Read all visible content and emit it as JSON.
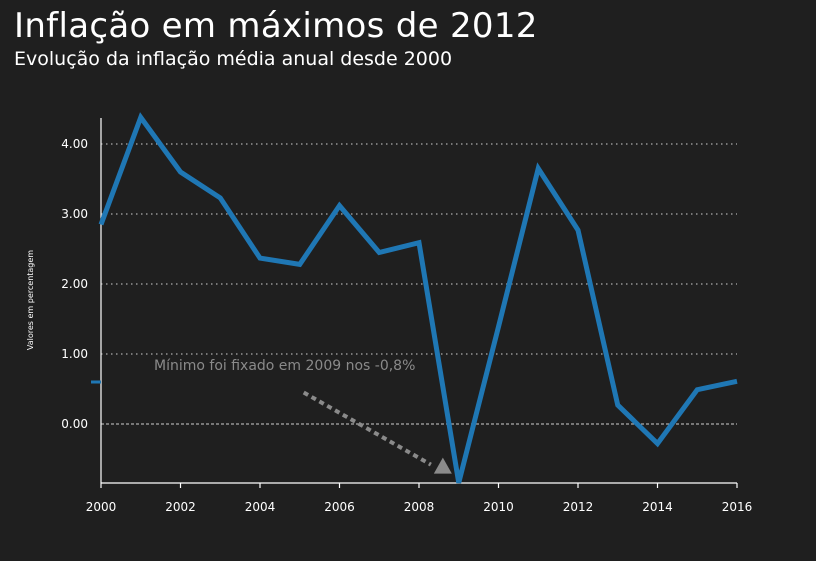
{
  "title": "Inflação em máximos de 2012",
  "subtitle": "Evolução da inflação média anual desde 2000",
  "chart_data": {
    "type": "line",
    "title": "Inflação em máximos de 2012",
    "subtitle": "Evolução da inflação média anual desde 2000",
    "xlabel": "",
    "ylabel": "Valores em percentagem",
    "xlim": [
      2000,
      2016
    ],
    "ylim": [
      -0.8,
      4.4
    ],
    "x_ticks": [
      2000,
      2002,
      2004,
      2006,
      2008,
      2010,
      2012,
      2014,
      2016
    ],
    "x_tick_labels": [
      "2000",
      "2002",
      "2004",
      "2006",
      "2008",
      "2010",
      "2012",
      "2014",
      "2016"
    ],
    "y_ticks": [
      0,
      1,
      2,
      3,
      4
    ],
    "y_tick_labels": [
      "0.00",
      "1.00",
      "2.00",
      "3.00",
      "4.00"
    ],
    "grid": "horizontal dotted",
    "x": [
      2000,
      2001,
      2002,
      2003,
      2004,
      2005,
      2006,
      2007,
      2008,
      2009,
      2010,
      2011,
      2012,
      2013,
      2014,
      2015,
      2016
    ],
    "series": [
      {
        "values": [
          2.85,
          4.38,
          3.6,
          3.23,
          2.37,
          2.28,
          3.12,
          2.45,
          2.59,
          -0.84,
          1.39,
          3.65,
          2.77,
          0.27,
          -0.28,
          0.49,
          0.61
        ],
        "color": "#1f77b4"
      }
    ],
    "annotation": {
      "text": "Mínimo foi fixado em 2009 nos -0,8%",
      "arrow_from": [
        2005.1,
        0.45
      ],
      "arrow_to": [
        2008.6,
        -0.68
      ],
      "color": "#8a8a8a"
    }
  },
  "colors": {
    "background": "#1f1f1f",
    "line": "#1f77b4",
    "grid": "#cfcfcf",
    "text": "#ffffff",
    "annotation": "#8a8a8a"
  }
}
